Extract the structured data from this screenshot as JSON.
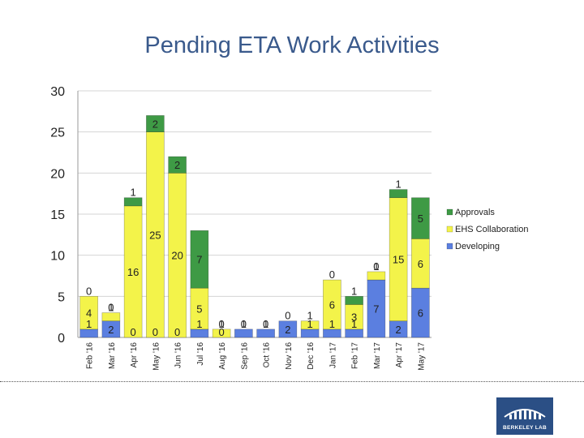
{
  "slide": {
    "title": "Pending ETA Work Activities",
    "logo_text": "BERKELEY LAB"
  },
  "colors": {
    "developing": "#5b7fe0",
    "ehs": "#f3f34a",
    "approvals": "#3e9a45"
  },
  "chart_data": {
    "type": "bar",
    "stacked": true,
    "title": "",
    "xlabel": "",
    "ylabel": "",
    "ylim": [
      0,
      30
    ],
    "yticks": [
      0,
      5,
      10,
      15,
      20,
      25,
      30
    ],
    "grid": true,
    "legend_position": "right",
    "categories": [
      "Feb '16",
      "Mar '16",
      "Apr '16",
      "May '16",
      "Jun '16",
      "Jul '16",
      "Aug '16",
      "Sep '16",
      "Oct '16",
      "Nov '16",
      "Dec '16",
      "Jan '17",
      "Feb '17",
      "Mar '17",
      "Apr '17",
      "May '17"
    ],
    "series": [
      {
        "name": "Developing",
        "color": "#5b7fe0",
        "values": [
          1,
          2,
          0,
          0,
          0,
          1,
          0,
          1,
          1,
          2,
          1,
          1,
          1,
          7,
          2,
          6
        ]
      },
      {
        "name": "EHS Collaboration",
        "color": "#f3f34a",
        "values": [
          4,
          1,
          16,
          25,
          20,
          5,
          1,
          0,
          0,
          0,
          1,
          6,
          3,
          1,
          15,
          6
        ]
      },
      {
        "name": "Approvals",
        "color": "#3e9a45",
        "values": [
          0,
          0,
          1,
          2,
          2,
          7,
          0,
          0,
          0,
          0,
          0,
          0,
          1,
          0,
          1,
          5
        ]
      }
    ],
    "data_labels": [
      [
        "1",
        "4",
        "0"
      ],
      [
        "2",
        "1",
        "0"
      ],
      [
        "0",
        "16",
        "1"
      ],
      [
        "0",
        "25",
        "2"
      ],
      [
        "0",
        "20",
        "2"
      ],
      [
        "1",
        "5",
        "7"
      ],
      [
        "0",
        "1",
        "0"
      ],
      [
        "1",
        "0",
        ""
      ],
      [
        "1",
        "0",
        ""
      ],
      [
        "2",
        "0",
        ""
      ],
      [
        "1",
        "1",
        ""
      ],
      [
        "1",
        "6",
        "0"
      ],
      [
        "1",
        "3",
        "1"
      ],
      [
        "7",
        "1",
        "0"
      ],
      [
        "2",
        "15",
        "1"
      ],
      [
        "6",
        "6",
        "5"
      ]
    ]
  }
}
